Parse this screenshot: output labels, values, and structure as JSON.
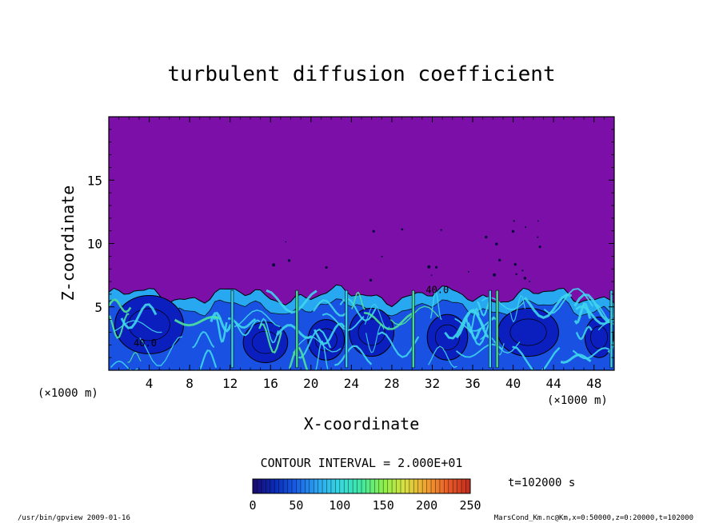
{
  "chart_data": {
    "type": "heatmap",
    "title": "turbulent diffusion coefficient",
    "xlabel": "X-coordinate",
    "ylabel": "Z-coordinate",
    "xunit_left": "(×1000 m)",
    "xunit_right": "(×1000 m)",
    "xlim": [
      0,
      50
    ],
    "ylim": [
      0,
      20
    ],
    "xticks": [
      4,
      8,
      12,
      16,
      20,
      24,
      28,
      32,
      36,
      40,
      44,
      48
    ],
    "yticks": [
      5,
      10,
      15
    ],
    "contour_labels": [
      {
        "text": "40.0",
        "x": 3.6,
        "z": 1.9
      },
      {
        "text": "40.0",
        "x": 32.5,
        "z": 6.1
      }
    ],
    "colorbar": {
      "min": 0,
      "max": 250,
      "ticks": [
        0,
        50,
        100,
        150,
        200,
        250
      ],
      "colors": [
        "#1a0a6e",
        "#0a2ab4",
        "#1860e6",
        "#2ca6f0",
        "#36d8e0",
        "#40e8a0",
        "#8cf04a",
        "#d8e040",
        "#f0a030",
        "#e85a26",
        "#c02a1e"
      ]
    },
    "field_colors": {
      "background": "#7b0fa8",
      "deep": "#0b1fbf",
      "mid": "#1744e0",
      "light": "#29a8f2",
      "cyan": "#3ed6ec",
      "green": "#4ce39a",
      "contour": "#000000"
    },
    "contour_interval_text": "CONTOUR INTERVAL = 2.000E+01",
    "time_text": "t=102000 s",
    "footer_left": "/usr/bin/gpview  2009-01-16",
    "footer_right": "MarsCond_Km.nc@Km,x=0:50000,z=0:20000,t=102000"
  }
}
